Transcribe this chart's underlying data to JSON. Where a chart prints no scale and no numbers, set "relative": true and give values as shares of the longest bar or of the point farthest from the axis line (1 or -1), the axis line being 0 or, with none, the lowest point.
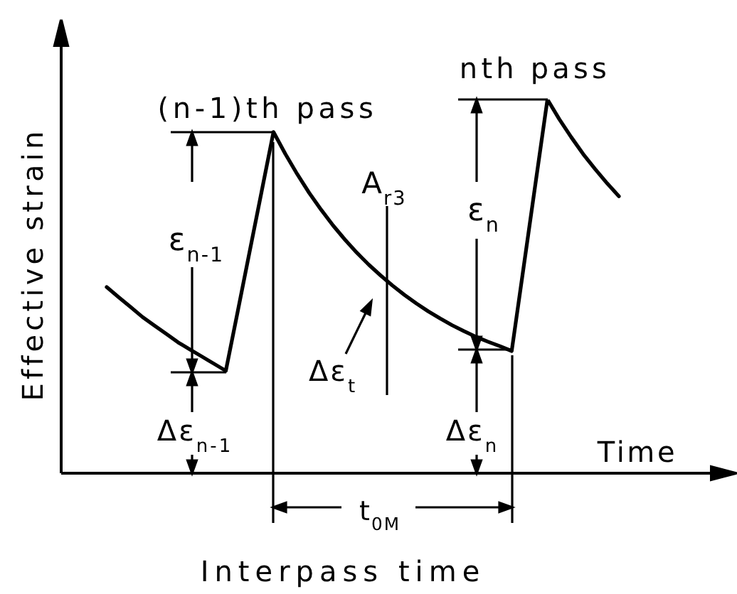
{
  "chart_data": {
    "type": "line",
    "xlabel": "Time",
    "ylabel": "Effective strain",
    "relative": true,
    "annotations": [
      "(n-1)th pass",
      "nth pass",
      "ε$_{n-1}$",
      "ε$_{n}$",
      "A$_{r3}$",
      "Δε$_{t}$",
      "Δε$_{n-1}$",
      "Δε$_{n}$",
      "t$_{0M}$",
      "Interpass time"
    ],
    "categories": [
      null,
      null,
      null,
      null,
      null,
      null,
      null,
      null,
      null,
      null,
      null,
      null,
      null,
      null,
      null,
      null,
      null,
      null,
      null,
      null,
      null,
      null,
      null,
      null,
      null,
      null,
      null,
      null,
      null,
      null,
      null,
      null,
      null,
      null,
      null,
      null,
      null,
      null,
      null,
      null,
      null,
      null,
      null,
      null
    ],
    "series": [
      {
        "color": "#000000",
        "values": [
          0.498,
          0.471,
          0.445,
          0.418,
          0.395,
          0.373,
          0.35,
          0.331,
          0.312,
          0.293,
          0.274,
          0.433,
          0.593,
          0.753,
          0.913,
          0.854,
          0.8,
          0.75,
          0.705,
          0.663,
          0.625,
          0.59,
          0.558,
          0.529,
          0.502,
          0.477,
          0.454,
          0.433,
          0.414,
          0.396,
          0.38,
          0.365,
          0.352,
          0.34,
          0.327,
          0.551,
          0.776,
          1,
          0.947,
          0.899,
          0.854,
          0.814,
          0.776,
          0.741
        ]
      }
    ]
  }
}
